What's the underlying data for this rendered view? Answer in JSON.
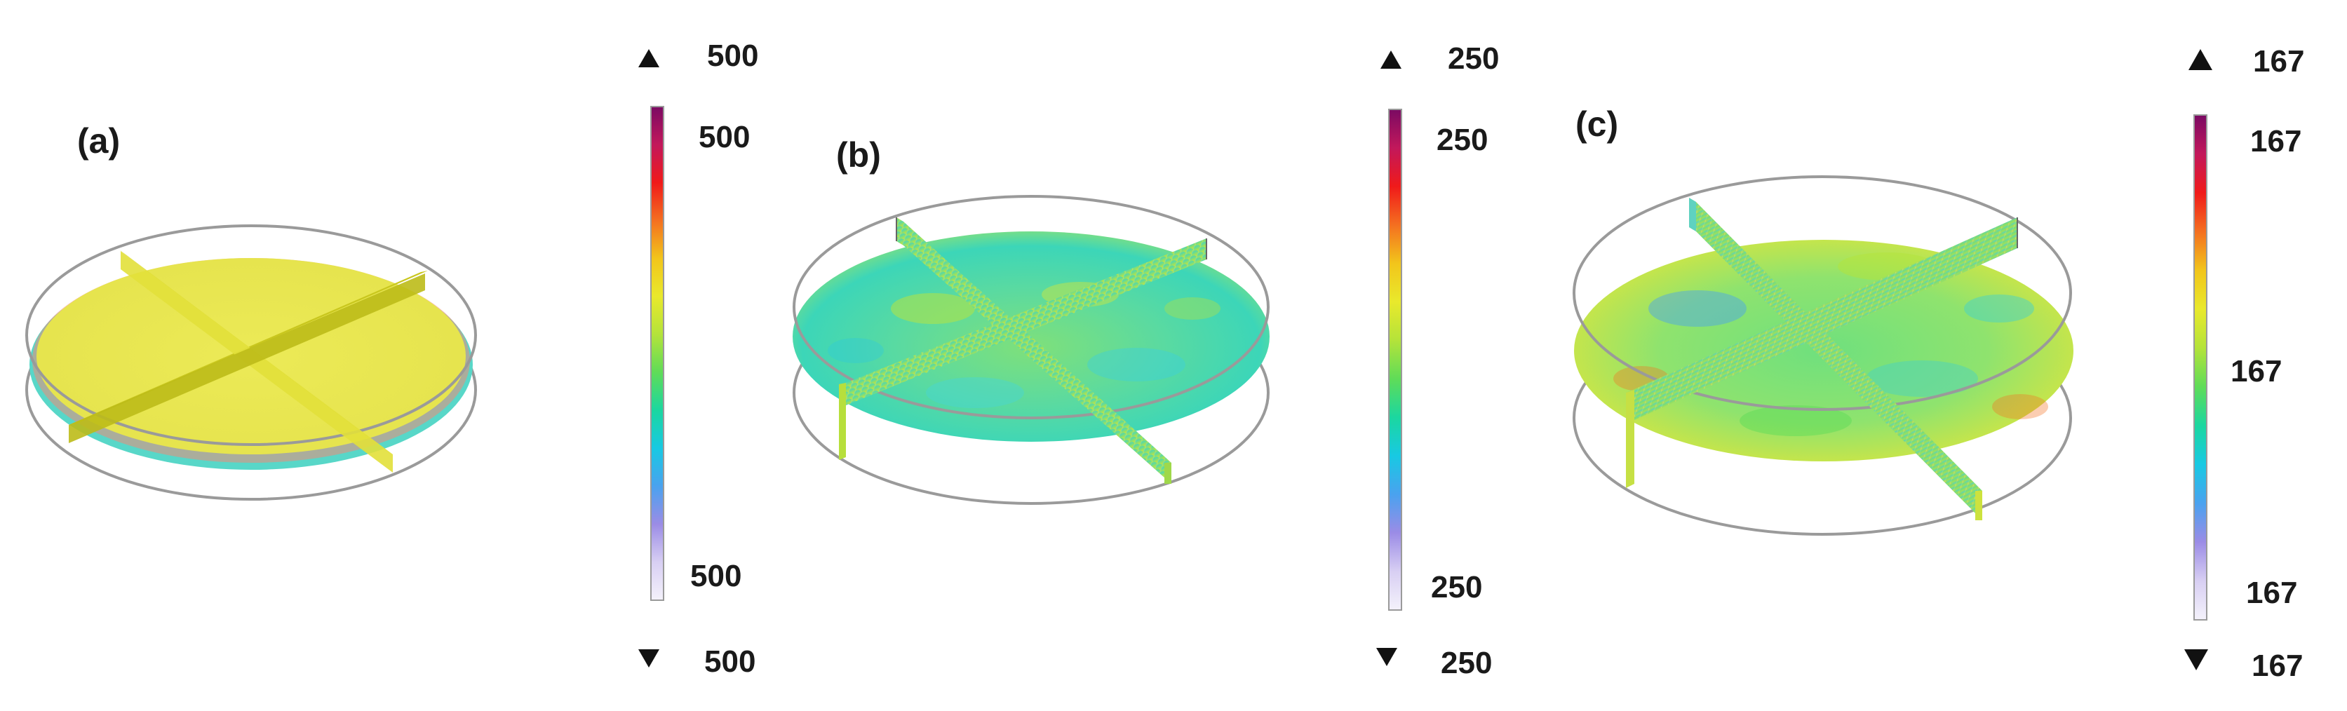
{
  "panels": [
    {
      "id": "a",
      "label": "(a)",
      "colorbar": {
        "max_arrow": "500",
        "top": "500",
        "bottom": "500",
        "min_arrow": "500",
        "middle": ""
      }
    },
    {
      "id": "b",
      "label": "(b)",
      "colorbar": {
        "max_arrow": "250",
        "top": "250",
        "bottom": "250",
        "min_arrow": "250",
        "middle": ""
      }
    },
    {
      "id": "c",
      "label": "(c)",
      "colorbar": {
        "max_arrow": "167",
        "top": "167",
        "bottom": "167",
        "min_arrow": "167",
        "middle": "167"
      }
    }
  ],
  "colormap": [
    "#7a0a63",
    "#c2185b",
    "#f01a1a",
    "#f46f20",
    "#f2c51b",
    "#e9e92c",
    "#b4e33a",
    "#5fdc58",
    "#1bd7a0",
    "#18c9e3",
    "#4aa2ef",
    "#9b8ce6",
    "#d8cff3",
    "#f4f2fb"
  ],
  "colors": {
    "uniform_yellow": "#ecea57",
    "baffle_yellow": "#c9c71e",
    "outline": "#9a9a9a"
  }
}
